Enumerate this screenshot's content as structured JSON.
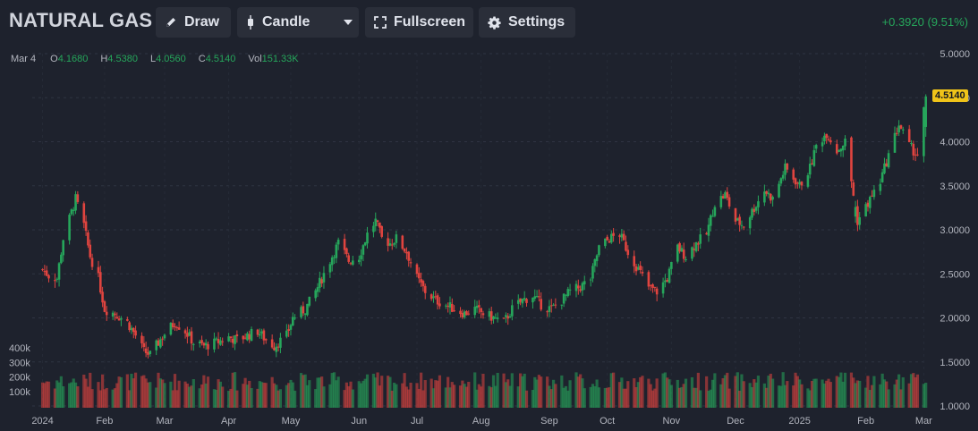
{
  "header": {
    "symbol": "NATURAL GAS",
    "draw_label": "Draw",
    "chart_type_label": "Candle",
    "fullscreen_label": "Fullscreen",
    "settings_label": "Settings",
    "change_text": "+0.3920 (9.51%)"
  },
  "ohlc": {
    "date": "Mar 4",
    "o_label": "O",
    "o": "4.1680",
    "h_label": "H",
    "h": "4.5380",
    "l_label": "L",
    "l": "4.0560",
    "c_label": "C",
    "c": "4.5140",
    "vol_label": "Vol",
    "vol": "151.33K"
  },
  "last_price": "4.5140",
  "colors": {
    "up": "#26a65b",
    "down": "#e0443f",
    "background": "#1e222d",
    "last_price_tag": "#f0c419"
  },
  "icons": [
    "pencil-icon",
    "candle-icon",
    "chevron-down-icon",
    "fullscreen-icon",
    "gear-icon"
  ],
  "chart_data": {
    "type": "candlestick",
    "ylim": [
      1.0,
      5.0
    ],
    "price_ticks": [
      "5.0000",
      "4.5000",
      "4.0000",
      "3.5000",
      "3.0000",
      "2.5000",
      "2.0000",
      "1.5000",
      "1.0000"
    ],
    "volume_ticks": [
      "400k",
      "300k",
      "200k",
      "100k"
    ],
    "x_ticks": [
      "2024",
      "Feb",
      "Mar",
      "Apr",
      "May",
      "Jun",
      "Jul",
      "Aug",
      "Sep",
      "Oct",
      "Nov",
      "Dec",
      "2025",
      "Feb",
      "Mar"
    ],
    "close_series": [
      [
        "2024-01-02",
        2.55
      ],
      [
        "2024-01-05",
        2.48
      ],
      [
        "2024-01-09",
        2.45
      ],
      [
        "2024-01-12",
        2.9
      ],
      [
        "2024-01-16",
        3.2
      ],
      [
        "2024-01-18",
        3.35
      ],
      [
        "2024-01-22",
        3.05
      ],
      [
        "2024-01-25",
        2.7
      ],
      [
        "2024-01-29",
        2.45
      ],
      [
        "2024-02-01",
        2.1
      ],
      [
        "2024-02-06",
        2.05
      ],
      [
        "2024-02-12",
        1.95
      ],
      [
        "2024-02-16",
        1.8
      ],
      [
        "2024-02-20",
        1.62
      ],
      [
        "2024-02-23",
        1.58
      ],
      [
        "2024-02-27",
        1.72
      ],
      [
        "2024-03-01",
        1.82
      ],
      [
        "2024-03-06",
        1.95
      ],
      [
        "2024-03-11",
        1.85
      ],
      [
        "2024-03-15",
        1.72
      ],
      [
        "2024-03-20",
        1.68
      ],
      [
        "2024-03-26",
        1.72
      ],
      [
        "2024-04-01",
        1.78
      ],
      [
        "2024-04-05",
        1.75
      ],
      [
        "2024-04-10",
        1.8
      ],
      [
        "2024-04-15",
        1.85
      ],
      [
        "2024-04-19",
        1.75
      ],
      [
        "2024-04-23",
        1.68
      ],
      [
        "2024-04-29",
        1.8
      ],
      [
        "2024-05-02",
        2.0
      ],
      [
        "2024-05-08",
        2.1
      ],
      [
        "2024-05-13",
        2.3
      ],
      [
        "2024-05-17",
        2.5
      ],
      [
        "2024-05-21",
        2.7
      ],
      [
        "2024-05-24",
        2.85
      ],
      [
        "2024-05-29",
        2.65
      ],
      [
        "2024-06-03",
        2.7
      ],
      [
        "2024-06-07",
        2.95
      ],
      [
        "2024-06-11",
        3.1
      ],
      [
        "2024-06-14",
        2.9
      ],
      [
        "2024-06-18",
        2.85
      ],
      [
        "2024-06-21",
        2.9
      ],
      [
        "2024-06-26",
        2.75
      ],
      [
        "2024-07-01",
        2.45
      ],
      [
        "2024-07-05",
        2.3
      ],
      [
        "2024-07-10",
        2.2
      ],
      [
        "2024-07-15",
        2.15
      ],
      [
        "2024-07-19",
        2.1
      ],
      [
        "2024-07-24",
        2.05
      ],
      [
        "2024-07-29",
        2.1
      ],
      [
        "2024-08-02",
        2.05
      ],
      [
        "2024-08-07",
        2.0
      ],
      [
        "2024-08-12",
        1.95
      ],
      [
        "2024-08-16",
        2.1
      ],
      [
        "2024-08-21",
        2.2
      ],
      [
        "2024-08-26",
        2.25
      ],
      [
        "2024-08-30",
        2.15
      ],
      [
        "2024-09-04",
        2.1
      ],
      [
        "2024-09-09",
        2.2
      ],
      [
        "2024-09-13",
        2.3
      ],
      [
        "2024-09-18",
        2.35
      ],
      [
        "2024-09-23",
        2.45
      ],
      [
        "2024-09-27",
        2.8
      ],
      [
        "2024-10-02",
        2.9
      ],
      [
        "2024-10-07",
        2.95
      ],
      [
        "2024-10-11",
        2.75
      ],
      [
        "2024-10-16",
        2.55
      ],
      [
        "2024-10-21",
        2.35
      ],
      [
        "2024-10-25",
        2.3
      ],
      [
        "2024-10-30",
        2.45
      ],
      [
        "2024-11-04",
        2.8
      ],
      [
        "2024-11-08",
        2.7
      ],
      [
        "2024-11-13",
        2.85
      ],
      [
        "2024-11-18",
        2.95
      ],
      [
        "2024-11-22",
        3.3
      ],
      [
        "2024-11-27",
        3.4
      ],
      [
        "2024-12-02",
        3.1
      ],
      [
        "2024-12-06",
        3.05
      ],
      [
        "2024-12-11",
        3.25
      ],
      [
        "2024-12-16",
        3.45
      ],
      [
        "2024-12-20",
        3.35
      ],
      [
        "2024-12-26",
        3.7
      ],
      [
        "2025-01-02",
        3.5
      ],
      [
        "2025-01-07",
        3.7
      ],
      [
        "2025-01-10",
        3.95
      ],
      [
        "2025-01-15",
        4.1
      ],
      [
        "2025-01-20",
        3.9
      ],
      [
        "2025-01-24",
        4.0
      ],
      [
        "2025-01-30",
        3.1
      ],
      [
        "2025-02-04",
        3.3
      ],
      [
        "2025-02-10",
        3.55
      ],
      [
        "2025-02-14",
        3.85
      ],
      [
        "2025-02-19",
        4.2
      ],
      [
        "2025-02-24",
        3.95
      ],
      [
        "2025-02-28",
        3.85
      ],
      [
        "2025-03-04",
        4.514
      ]
    ]
  }
}
